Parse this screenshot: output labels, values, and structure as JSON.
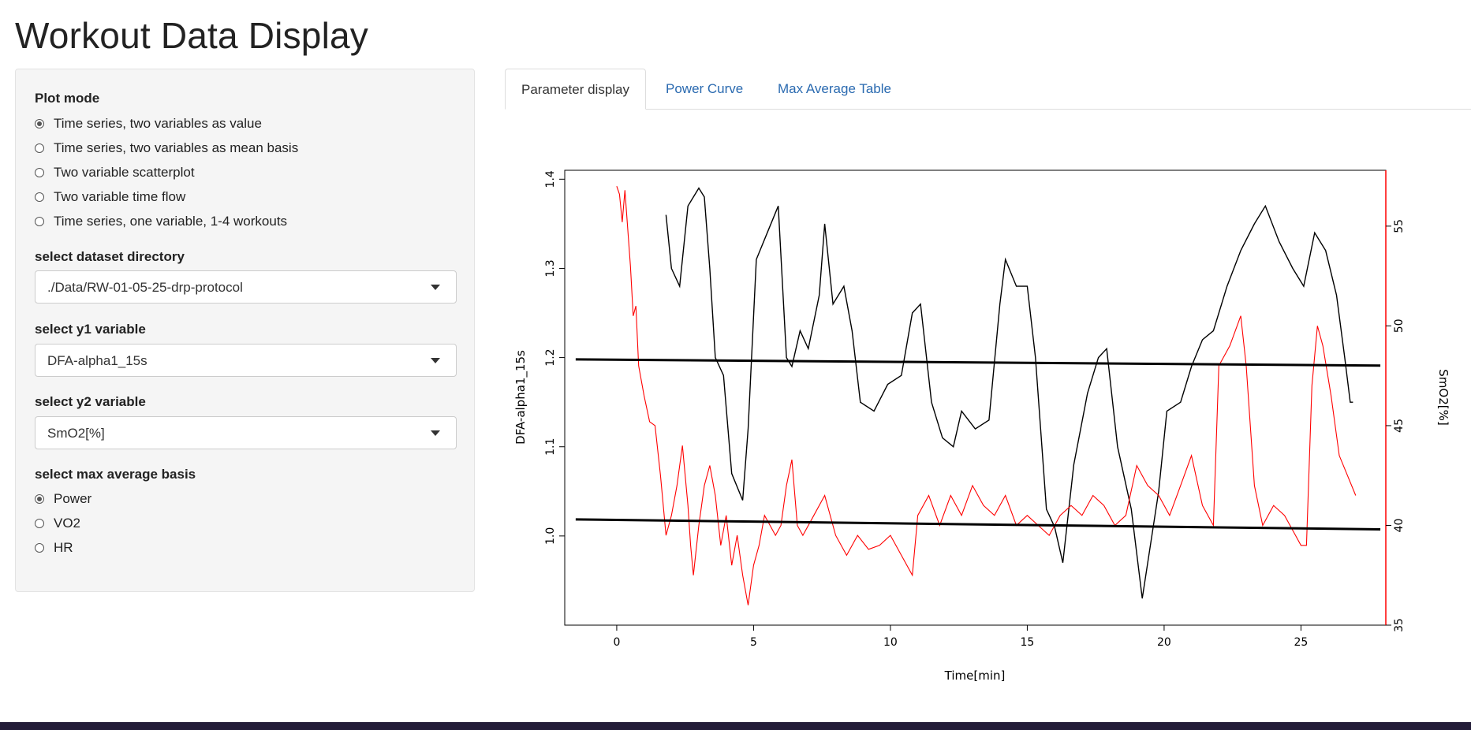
{
  "page": {
    "title": "Workout Data Display"
  },
  "sidebar": {
    "plot_mode": {
      "label": "Plot mode",
      "options": [
        {
          "label": "Time series, two variables as value",
          "checked": true
        },
        {
          "label": "Time series, two variables as mean basis",
          "checked": false
        },
        {
          "label": "Two variable scatterplot",
          "checked": false
        },
        {
          "label": "Two variable time flow",
          "checked": false
        },
        {
          "label": "Time series, one variable, 1-4 workouts",
          "checked": false
        }
      ]
    },
    "dataset": {
      "label": "select dataset directory",
      "value": "./Data/RW-01-05-25-drp-protocol"
    },
    "y1": {
      "label": "select y1 variable",
      "value": "DFA-alpha1_15s"
    },
    "y2": {
      "label": "select y2 variable",
      "value": "SmO2[%]"
    },
    "max_avg": {
      "label": "select max average basis",
      "options": [
        {
          "label": "Power",
          "checked": true
        },
        {
          "label": "VO2",
          "checked": false
        },
        {
          "label": "HR",
          "checked": false
        }
      ]
    }
  },
  "tabs": [
    {
      "label": "Parameter display",
      "active": true
    },
    {
      "label": "Power Curve",
      "active": false
    },
    {
      "label": "Max Average Table",
      "active": false
    }
  ],
  "colors": {
    "y1_series": "#000000",
    "y2_series": "#ff0000",
    "link": "#2a6ab0"
  },
  "chart_data": {
    "type": "line",
    "xlabel": "Time[min]",
    "ylabel_left": "DFA-alpha1_15s",
    "ylabel_right": "SmO2[%]",
    "xlim": [
      -1.9,
      28.1
    ],
    "ylim_left": [
      0.9,
      1.41
    ],
    "ylim_right": [
      35,
      57.8
    ],
    "x_ticks": [
      0,
      5,
      10,
      15,
      20,
      25
    ],
    "y_left_ticks": [
      1.0,
      1.1,
      1.2,
      1.3,
      1.4
    ],
    "y_right_ticks": [
      35,
      40,
      45,
      50,
      55
    ],
    "series": [
      {
        "name": "DFA-alpha1_15s",
        "axis": "left",
        "color": "#000000",
        "points": [
          [
            1.8,
            1.36
          ],
          [
            2.0,
            1.3
          ],
          [
            2.3,
            1.28
          ],
          [
            2.6,
            1.37
          ],
          [
            3.0,
            1.39
          ],
          [
            3.2,
            1.38
          ],
          [
            3.4,
            1.3
          ],
          [
            3.6,
            1.2
          ],
          [
            3.9,
            1.18
          ],
          [
            4.2,
            1.07
          ],
          [
            4.6,
            1.04
          ],
          [
            4.8,
            1.12
          ],
          [
            5.1,
            1.31
          ],
          [
            5.5,
            1.34
          ],
          [
            5.9,
            1.37
          ],
          [
            6.2,
            1.2
          ],
          [
            6.4,
            1.19
          ],
          [
            6.7,
            1.23
          ],
          [
            7.0,
            1.21
          ],
          [
            7.4,
            1.27
          ],
          [
            7.6,
            1.35
          ],
          [
            7.9,
            1.26
          ],
          [
            8.3,
            1.28
          ],
          [
            8.6,
            1.23
          ],
          [
            8.9,
            1.15
          ],
          [
            9.4,
            1.14
          ],
          [
            9.9,
            1.17
          ],
          [
            10.4,
            1.18
          ],
          [
            10.8,
            1.25
          ],
          [
            11.1,
            1.26
          ],
          [
            11.5,
            1.15
          ],
          [
            11.9,
            1.11
          ],
          [
            12.3,
            1.1
          ],
          [
            12.6,
            1.14
          ],
          [
            13.1,
            1.12
          ],
          [
            13.6,
            1.13
          ],
          [
            14.0,
            1.26
          ],
          [
            14.2,
            1.31
          ],
          [
            14.6,
            1.28
          ],
          [
            15.0,
            1.28
          ],
          [
            15.3,
            1.2
          ],
          [
            15.7,
            1.03
          ],
          [
            16.0,
            1.01
          ],
          [
            16.3,
            0.97
          ],
          [
            16.7,
            1.08
          ],
          [
            17.2,
            1.16
          ],
          [
            17.6,
            1.2
          ],
          [
            17.9,
            1.21
          ],
          [
            18.3,
            1.1
          ],
          [
            18.8,
            1.03
          ],
          [
            19.2,
            0.93
          ],
          [
            19.5,
            0.99
          ],
          [
            19.8,
            1.05
          ],
          [
            20.1,
            1.14
          ],
          [
            20.6,
            1.15
          ],
          [
            21.0,
            1.19
          ],
          [
            21.4,
            1.22
          ],
          [
            21.8,
            1.23
          ],
          [
            22.3,
            1.28
          ],
          [
            22.8,
            1.32
          ],
          [
            23.3,
            1.35
          ],
          [
            23.7,
            1.37
          ],
          [
            24.2,
            1.33
          ],
          [
            24.7,
            1.3
          ],
          [
            25.1,
            1.28
          ],
          [
            25.5,
            1.34
          ],
          [
            25.9,
            1.32
          ],
          [
            26.3,
            1.27
          ],
          [
            26.6,
            1.2
          ],
          [
            26.8,
            1.15
          ],
          [
            26.9,
            1.15
          ]
        ]
      },
      {
        "name": "SmO2[%]",
        "axis": "right",
        "color": "#ff0000",
        "points": [
          [
            0.0,
            57.0
          ],
          [
            0.1,
            56.6
          ],
          [
            0.2,
            55.2
          ],
          [
            0.3,
            56.8
          ],
          [
            0.5,
            53.0
          ],
          [
            0.6,
            50.5
          ],
          [
            0.7,
            51.0
          ],
          [
            0.8,
            48.0
          ],
          [
            1.0,
            46.5
          ],
          [
            1.2,
            45.2
          ],
          [
            1.4,
            45.0
          ],
          [
            1.6,
            42.5
          ],
          [
            1.8,
            39.5
          ],
          [
            2.0,
            40.5
          ],
          [
            2.2,
            42.0
          ],
          [
            2.4,
            44.0
          ],
          [
            2.6,
            41.0
          ],
          [
            2.7,
            39.0
          ],
          [
            2.8,
            37.5
          ],
          [
            3.0,
            40.0
          ],
          [
            3.2,
            42.0
          ],
          [
            3.4,
            43.0
          ],
          [
            3.6,
            41.5
          ],
          [
            3.8,
            39.0
          ],
          [
            4.0,
            40.5
          ],
          [
            4.2,
            38.0
          ],
          [
            4.4,
            39.5
          ],
          [
            4.6,
            37.5
          ],
          [
            4.8,
            36.0
          ],
          [
            5.0,
            38.0
          ],
          [
            5.2,
            39.0
          ],
          [
            5.4,
            40.5
          ],
          [
            5.6,
            40.0
          ],
          [
            5.8,
            39.5
          ],
          [
            6.0,
            40.0
          ],
          [
            6.2,
            42.0
          ],
          [
            6.4,
            43.3
          ],
          [
            6.6,
            40.0
          ],
          [
            6.8,
            39.5
          ],
          [
            7.2,
            40.5
          ],
          [
            7.6,
            41.5
          ],
          [
            8.0,
            39.5
          ],
          [
            8.4,
            38.5
          ],
          [
            8.8,
            39.5
          ],
          [
            9.2,
            38.8
          ],
          [
            9.6,
            39.0
          ],
          [
            10.0,
            39.5
          ],
          [
            10.4,
            38.5
          ],
          [
            10.8,
            37.5
          ],
          [
            11.0,
            40.5
          ],
          [
            11.4,
            41.5
          ],
          [
            11.8,
            40.0
          ],
          [
            12.2,
            41.5
          ],
          [
            12.6,
            40.5
          ],
          [
            13.0,
            42.0
          ],
          [
            13.4,
            41.0
          ],
          [
            13.8,
            40.5
          ],
          [
            14.2,
            41.5
          ],
          [
            14.6,
            40.0
          ],
          [
            15.0,
            40.5
          ],
          [
            15.4,
            40.0
          ],
          [
            15.8,
            39.5
          ],
          [
            16.2,
            40.5
          ],
          [
            16.6,
            41.0
          ],
          [
            17.0,
            40.5
          ],
          [
            17.4,
            41.5
          ],
          [
            17.8,
            41.0
          ],
          [
            18.2,
            40.0
          ],
          [
            18.6,
            40.5
          ],
          [
            19.0,
            43.0
          ],
          [
            19.4,
            42.0
          ],
          [
            19.8,
            41.5
          ],
          [
            20.2,
            40.5
          ],
          [
            20.6,
            42.0
          ],
          [
            21.0,
            43.5
          ],
          [
            21.4,
            41.0
          ],
          [
            21.8,
            40.0
          ],
          [
            22.0,
            48.0
          ],
          [
            22.4,
            49.0
          ],
          [
            22.8,
            50.5
          ],
          [
            23.0,
            48.0
          ],
          [
            23.3,
            42.0
          ],
          [
            23.6,
            40.0
          ],
          [
            24.0,
            41.0
          ],
          [
            24.4,
            40.5
          ],
          [
            24.8,
            39.5
          ],
          [
            25.0,
            39.0
          ],
          [
            25.2,
            39.0
          ],
          [
            25.4,
            47.0
          ],
          [
            25.6,
            50.0
          ],
          [
            25.8,
            49.0
          ],
          [
            26.1,
            46.5
          ],
          [
            26.4,
            43.5
          ],
          [
            26.7,
            42.5
          ],
          [
            27.0,
            41.5
          ]
        ]
      }
    ],
    "trend_lines": [
      {
        "name": "DFA-alpha1_15s trend",
        "axis": "left",
        "x": [
          -1.5,
          27.9
        ],
        "y": [
          1.198,
          1.191
        ]
      },
      {
        "name": "SmO2 trend",
        "axis": "right",
        "x": [
          -1.5,
          27.9
        ],
        "y": [
          40.3,
          39.8
        ]
      }
    ]
  }
}
